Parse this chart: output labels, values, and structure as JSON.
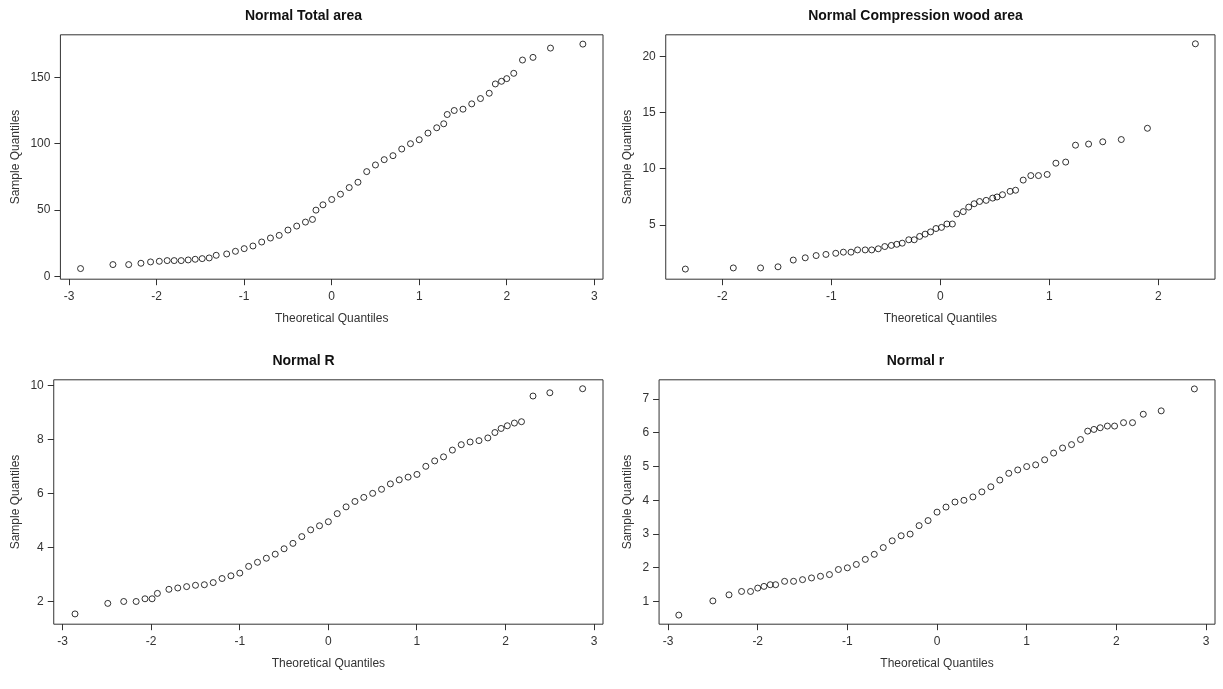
{
  "chart_data": [
    {
      "type": "scatter",
      "title": "Normal Total area",
      "xlabel": "Theoretical Quantiles",
      "ylabel": "Sample Quantiles",
      "marker": "circle",
      "xlim": [
        -3.1,
        3.1
      ],
      "ylim": [
        -2,
        182
      ],
      "xticks": [
        -3,
        -2,
        -1,
        0,
        1,
        2,
        3
      ],
      "yticks": [
        0,
        50,
        100,
        150
      ],
      "series": [
        {
          "color": "#000000",
          "x": [
            -2.87,
            -2.5,
            -2.32,
            -2.18,
            -2.07,
            -1.97,
            -1.88,
            -1.8,
            -1.72,
            -1.64,
            -1.56,
            -1.48,
            -1.4,
            -1.32,
            -1.2,
            -1.1,
            -1.0,
            -0.9,
            -0.8,
            -0.7,
            -0.6,
            -0.5,
            -0.4,
            -0.3,
            -0.22,
            -0.18,
            -0.1,
            0,
            0.1,
            0.2,
            0.3,
            0.4,
            0.5,
            0.6,
            0.7,
            0.8,
            0.9,
            1.0,
            1.1,
            1.2,
            1.28,
            1.32,
            1.4,
            1.5,
            1.6,
            1.7,
            1.8,
            1.87,
            1.94,
            2.0,
            2.08,
            2.18,
            2.3,
            2.5,
            2.87
          ],
          "values": [
            6,
            9,
            9,
            10,
            11,
            11.5,
            12,
            12,
            12,
            12.5,
            13,
            13.5,
            14,
            16,
            17,
            19,
            21,
            23,
            26,
            29,
            31,
            35,
            38,
            41,
            43,
            50,
            54,
            58,
            62,
            67,
            71,
            79,
            84,
            88,
            91,
            96,
            100,
            103,
            108,
            112,
            115,
            122,
            125,
            126,
            130,
            134,
            138,
            145,
            147,
            149,
            153,
            163,
            165,
            172,
            175
          ]
        }
      ]
    },
    {
      "type": "scatter",
      "title": "Normal Compression wood area",
      "xlabel": "Theoretical Quantiles",
      "ylabel": "Sample Quantiles",
      "marker": "circle",
      "xlim": [
        -2.52,
        2.52
      ],
      "ylim": [
        0.2,
        21.9
      ],
      "xticks": [
        -2,
        -1,
        0,
        1,
        2
      ],
      "yticks": [
        5,
        10,
        15,
        20
      ],
      "series": [
        {
          "color": "#000000",
          "x": [
            -2.34,
            -1.9,
            -1.65,
            -1.49,
            -1.35,
            -1.24,
            -1.14,
            -1.05,
            -0.96,
            -0.89,
            -0.82,
            -0.76,
            -0.69,
            -0.63,
            -0.57,
            -0.51,
            -0.45,
            -0.4,
            -0.35,
            -0.29,
            -0.24,
            -0.19,
            -0.14,
            -0.09,
            -0.04,
            0.01,
            0.06,
            0.11,
            0.15,
            0.21,
            0.26,
            0.31,
            0.36,
            0.42,
            0.48,
            0.52,
            0.57,
            0.64,
            0.69,
            0.76,
            0.83,
            0.9,
            0.98,
            1.06,
            1.15,
            1.24,
            1.36,
            1.49,
            1.66,
            1.9,
            2.34
          ],
          "values": [
            1.1,
            1.2,
            1.2,
            1.3,
            1.9,
            2.1,
            2.3,
            2.4,
            2.5,
            2.6,
            2.6,
            2.8,
            2.8,
            2.8,
            2.9,
            3.1,
            3.2,
            3.3,
            3.4,
            3.7,
            3.7,
            4.0,
            4.2,
            4.4,
            4.7,
            4.8,
            5.1,
            5.1,
            6.0,
            6.2,
            6.6,
            6.9,
            7.1,
            7.2,
            7.4,
            7.5,
            7.7,
            8.0,
            8.1,
            9.0,
            9.4,
            9.4,
            9.5,
            10.5,
            10.6,
            12.1,
            12.2,
            12.4,
            12.6,
            13.6,
            21.1
          ]
        }
      ]
    },
    {
      "type": "scatter",
      "title": "Normal R",
      "xlabel": "Theoretical Quantiles",
      "ylabel": "Sample Quantiles",
      "marker": "circle",
      "xlim": [
        -3.1,
        3.1
      ],
      "ylim": [
        1.16,
        10.2
      ],
      "xticks": [
        -3,
        -2,
        -1,
        0,
        1,
        2,
        3
      ],
      "yticks": [
        2,
        4,
        6,
        8,
        10
      ],
      "series": [
        {
          "color": "#000000",
          "x": [
            -2.86,
            -2.49,
            -2.31,
            -2.17,
            -2.07,
            -1.99,
            -1.93,
            -1.8,
            -1.7,
            -1.6,
            -1.5,
            -1.4,
            -1.3,
            -1.2,
            -1.1,
            -1.0,
            -0.9,
            -0.8,
            -0.7,
            -0.6,
            -0.5,
            -0.4,
            -0.3,
            -0.2,
            -0.1,
            0,
            0.1,
            0.2,
            0.3,
            0.4,
            0.5,
            0.6,
            0.7,
            0.8,
            0.9,
            1.0,
            1.1,
            1.2,
            1.3,
            1.4,
            1.5,
            1.6,
            1.7,
            1.8,
            1.88,
            1.95,
            2.02,
            2.1,
            2.18,
            2.31,
            2.5,
            2.87
          ],
          "values": [
            1.54,
            1.93,
            2.0,
            2.0,
            2.1,
            2.1,
            2.3,
            2.45,
            2.5,
            2.55,
            2.6,
            2.62,
            2.7,
            2.85,
            2.95,
            3.05,
            3.3,
            3.45,
            3.6,
            3.75,
            3.95,
            4.15,
            4.4,
            4.65,
            4.8,
            4.95,
            5.25,
            5.5,
            5.7,
            5.85,
            6.0,
            6.15,
            6.35,
            6.5,
            6.6,
            6.7,
            7.0,
            7.2,
            7.35,
            7.6,
            7.8,
            7.9,
            7.95,
            8.05,
            8.25,
            8.4,
            8.5,
            8.6,
            8.65,
            9.6,
            9.72,
            9.87
          ]
        }
      ]
    },
    {
      "type": "scatter",
      "title": "Normal r",
      "xlabel": "Theoretical Quantiles",
      "ylabel": "Sample Quantiles",
      "marker": "circle",
      "xlim": [
        -3.1,
        3.1
      ],
      "ylim": [
        0.33,
        7.57
      ],
      "xticks": [
        -3,
        -2,
        -1,
        0,
        1,
        2,
        3
      ],
      "yticks": [
        1,
        2,
        3,
        4,
        5,
        6,
        7
      ],
      "series": [
        {
          "color": "#000000",
          "x": [
            -2.88,
            -2.5,
            -2.32,
            -2.18,
            -2.08,
            -2.0,
            -1.93,
            -1.86,
            -1.8,
            -1.7,
            -1.6,
            -1.5,
            -1.4,
            -1.3,
            -1.2,
            -1.1,
            -1.0,
            -0.9,
            -0.8,
            -0.7,
            -0.6,
            -0.5,
            -0.4,
            -0.3,
            -0.2,
            -0.1,
            0,
            0.1,
            0.2,
            0.3,
            0.4,
            0.5,
            0.6,
            0.7,
            0.8,
            0.9,
            1.0,
            1.1,
            1.2,
            1.3,
            1.4,
            1.5,
            1.6,
            1.68,
            1.75,
            1.82,
            1.9,
            1.98,
            2.08,
            2.18,
            2.3,
            2.5,
            2.87
          ],
          "values": [
            0.6,
            1.02,
            1.2,
            1.3,
            1.3,
            1.4,
            1.45,
            1.5,
            1.5,
            1.6,
            1.6,
            1.65,
            1.7,
            1.75,
            1.8,
            1.95,
            2.0,
            2.1,
            2.25,
            2.4,
            2.6,
            2.8,
            2.95,
            3.0,
            3.25,
            3.4,
            3.65,
            3.8,
            3.95,
            4.0,
            4.1,
            4.25,
            4.4,
            4.6,
            4.8,
            4.9,
            5.0,
            5.05,
            5.2,
            5.4,
            5.55,
            5.65,
            5.8,
            6.05,
            6.1,
            6.15,
            6.2,
            6.2,
            6.3,
            6.3,
            6.55,
            6.65,
            7.3
          ]
        }
      ]
    }
  ]
}
